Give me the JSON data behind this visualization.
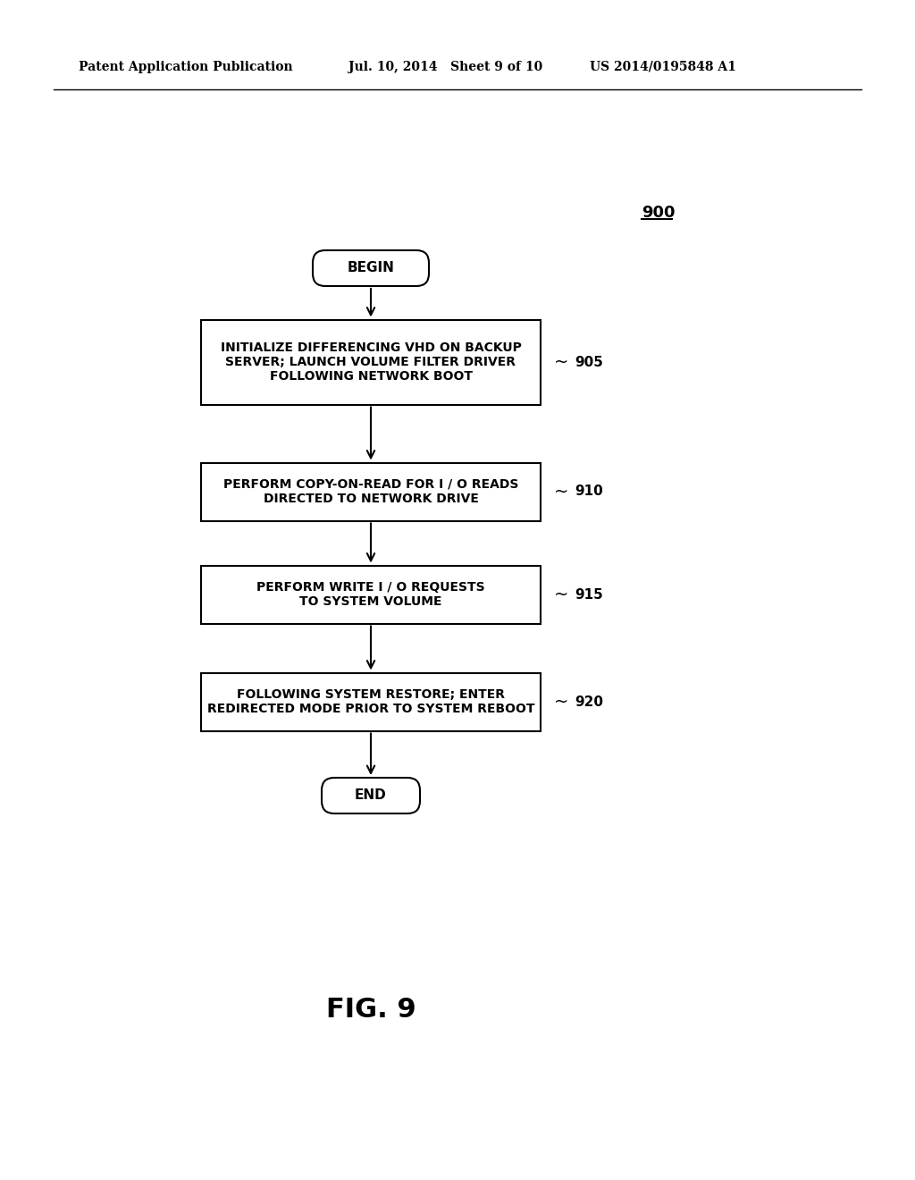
{
  "bg_color": "#ffffff",
  "header_left": "Patent Application Publication",
  "header_mid": "Jul. 10, 2014   Sheet 9 of 10",
  "header_right": "US 2014/0195848 A1",
  "fig_label": "FIG. 9",
  "diagram_label": "900",
  "begin_label": "BEGIN",
  "end_label": "END",
  "boxes": [
    {
      "id": "905",
      "label": "INITIALIZE DIFFERENCING VHD ON BACKUP\nSERVER; LAUNCH VOLUME FILTER DRIVER\nFOLLOWING NETWORK BOOT",
      "ref": "905"
    },
    {
      "id": "910",
      "label": "PERFORM COPY-ON-READ FOR I / O READS\nDIRECTED TO NETWORK DRIVE",
      "ref": "910"
    },
    {
      "id": "915",
      "label": "PERFORM WRITE I / O REQUESTS\nTO SYSTEM VOLUME",
      "ref": "915"
    },
    {
      "id": "920",
      "label": "FOLLOWING SYSTEM RESTORE; ENTER\nREDIRECTED MODE PRIOR TO SYSTEM REBOOT",
      "ref": "920"
    }
  ]
}
